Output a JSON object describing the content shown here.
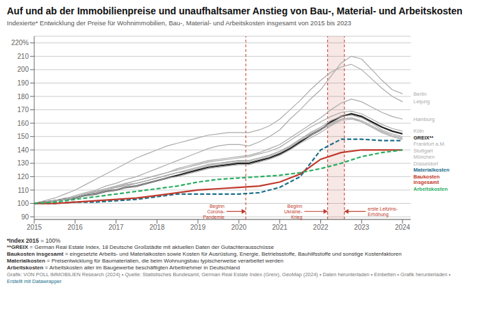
{
  "chart_data": {
    "type": "line",
    "title": "Auf und ab der Immobilienpreise und unaufhaltsamer Anstieg von Bau-, Material- und Arbeitskosten",
    "subtitle": "Indexierte* Entwicklung der Preise für Wohnimmobilien, Bau-, Material- und Arbeitskosten insgesamt von 2015 bis 2023",
    "footnotes": [
      "*Index 2015 = 100%",
      "**GREIX = German Real Estate Index, 18 Deutsche Großstädte mit aktuellen Daten der Gutachterausschüsse",
      "Baukosten insgesamt = eingesetzte Arbeits- und Materialkosten sowie Kosten für Ausrüstung, Energie, Betriebsstoffe, Bauhilfsstoffe und sonstige Kostenfaktoren",
      "Materialkosten = Preisentwicklung für Baumaterialien, die beim Wohnungsbau typischerweise verarbeitet werden",
      "Arbeitskosten = Arbeitskosten aller im Baugewerbe beschäftigten Arbeitnehmer in Deutschland",
      "Grafik: VON POLL IMMOBILIEN Research (2024) • Quelle: Statistisches Bundesamt, German Real Estate Index (Greix), GeoMap (2024) • Daten herunterladen • Einbetten • Grafik herunterladen •",
      "Erstellt mit Datawrapper"
    ],
    "xlim": [
      2015.0,
      2024.2
    ],
    "xticks": [
      2015,
      2016,
      2017,
      2018,
      2019,
      2020,
      2021,
      2022,
      2023,
      2024
    ],
    "ylim": [
      88,
      225
    ],
    "yticks": [
      90,
      100,
      110,
      120,
      130,
      140,
      150,
      160,
      170,
      180,
      190,
      200,
      210,
      {
        "value": 220,
        "label": "220%"
      }
    ],
    "grid": true,
    "vlines": [
      2020.17,
      2022.17,
      2022.58
    ],
    "vline_colors": [
      "#c0392b",
      "#c0392b",
      "#c0392b"
    ],
    "annotations": [
      {
        "text": "Beginn\nCorona-\nPandemie",
        "x": 2020.17,
        "text_x": 2019.7,
        "y": 94,
        "color": "#c0392b"
      },
      {
        "text": "Beginn\nUkraine-\nKrieg",
        "x": 2022.17,
        "text_x": 2021.6,
        "y": 94,
        "color": "#c0392b"
      },
      {
        "text": "erste Leitzins-\nErhöhung",
        "x": 2022.58,
        "text_x": 2023.1,
        "y": 94,
        "color": "#c0392b"
      }
    ],
    "series": [
      {
        "name": "Berlin",
        "color": "#aaaaaa",
        "line_style": "solid",
        "x": [
          2015.0,
          2015.25,
          2015.5,
          2015.75,
          2016.0,
          2016.25,
          2016.5,
          2016.75,
          2017.0,
          2017.25,
          2017.5,
          2017.75,
          2018.0,
          2018.25,
          2018.5,
          2018.75,
          2019.0,
          2019.25,
          2019.5,
          2019.75,
          2020.0,
          2020.25,
          2020.5,
          2020.75,
          2021.0,
          2021.25,
          2021.5,
          2021.75,
          2022.0,
          2022.25,
          2022.5,
          2022.75,
          2023.0,
          2023.25,
          2023.5,
          2023.75,
          2024.0
        ],
        "values": [
          100,
          101,
          102,
          103,
          106,
          108,
          110,
          113,
          115,
          118,
          120,
          123,
          126,
          129,
          132,
          135,
          138,
          141,
          143,
          144,
          144,
          143,
          146,
          150,
          155,
          163,
          170,
          178,
          185,
          195,
          205,
          210,
          208,
          200,
          192,
          185,
          182
        ]
      },
      {
        "name": "Hamburg",
        "color": "#aaaaaa",
        "line_style": "solid",
        "x": [
          2015.0,
          2015.25,
          2015.5,
          2015.75,
          2016.0,
          2016.25,
          2016.5,
          2016.75,
          2017.0,
          2017.25,
          2017.5,
          2017.75,
          2018.0,
          2018.25,
          2018.5,
          2018.75,
          2019.0,
          2019.25,
          2019.5,
          2019.75,
          2020.0,
          2020.25,
          2020.5,
          2020.75,
          2021.0,
          2021.25,
          2021.5,
          2021.75,
          2022.0,
          2022.25,
          2022.5,
          2022.75,
          2023.0,
          2023.25,
          2023.5,
          2023.75,
          2024.0
        ],
        "values": [
          100,
          101,
          102,
          104,
          105,
          107,
          109,
          111,
          113,
          115,
          117,
          119,
          121,
          123,
          126,
          128,
          130,
          132,
          133,
          134,
          135,
          136,
          138,
          141,
          144,
          149,
          154,
          159,
          164,
          170,
          175,
          178,
          176,
          172,
          168,
          165,
          163
        ]
      },
      {
        "name": "Leipzig",
        "color": "#aaaaaa",
        "line_style": "solid",
        "x": [
          2015.0,
          2015.25,
          2015.5,
          2015.75,
          2016.0,
          2016.25,
          2016.5,
          2016.75,
          2017.0,
          2017.25,
          2017.5,
          2017.75,
          2018.0,
          2018.25,
          2018.5,
          2018.75,
          2019.0,
          2019.25,
          2019.5,
          2019.75,
          2020.0,
          2020.25,
          2020.5,
          2020.75,
          2021.0,
          2021.25,
          2021.5,
          2021.75,
          2022.0,
          2022.25,
          2022.5,
          2022.75,
          2023.0,
          2023.25,
          2023.5,
          2023.75,
          2024.0
        ],
        "values": [
          100,
          102,
          104,
          107,
          110,
          114,
          118,
          122,
          126,
          130,
          134,
          137,
          140,
          143,
          145,
          147,
          149,
          151,
          152,
          153,
          153,
          153,
          155,
          158,
          163,
          170,
          177,
          185,
          192,
          198,
          202,
          204,
          200,
          193,
          186,
          180,
          176
        ]
      },
      {
        "name": "GREIX**",
        "color": "#222222",
        "line_style": "solid",
        "x": [
          2015.0,
          2015.25,
          2015.5,
          2015.75,
          2016.0,
          2016.25,
          2016.5,
          2016.75,
          2017.0,
          2017.25,
          2017.5,
          2017.75,
          2018.0,
          2018.25,
          2018.5,
          2018.75,
          2019.0,
          2019.25,
          2019.5,
          2019.75,
          2020.0,
          2020.25,
          2020.5,
          2020.75,
          2021.0,
          2021.25,
          2021.5,
          2021.75,
          2022.0,
          2022.25,
          2022.5,
          2022.75,
          2023.0,
          2023.25,
          2023.5,
          2023.75,
          2024.0
        ],
        "values": [
          100,
          101,
          102,
          103,
          104,
          106,
          107,
          109,
          110,
          112,
          113,
          115,
          117,
          119,
          121,
          123,
          125,
          127,
          128,
          129,
          130,
          130,
          132,
          134,
          137,
          141,
          146,
          151,
          155,
          161,
          165,
          167,
          165,
          161,
          157,
          154,
          152
        ]
      },
      {
        "name": "Köln",
        "color": "#aaaaaa",
        "line_style": "solid",
        "x": [
          2015.0,
          2015.25,
          2015.5,
          2015.75,
          2016.0,
          2016.25,
          2016.5,
          2016.75,
          2017.0,
          2017.25,
          2017.5,
          2017.75,
          2018.0,
          2018.25,
          2018.5,
          2018.75,
          2019.0,
          2019.25,
          2019.5,
          2019.75,
          2020.0,
          2020.25,
          2020.5,
          2020.75,
          2021.0,
          2021.25,
          2021.5,
          2021.75,
          2022.0,
          2022.25,
          2022.5,
          2022.75,
          2023.0,
          2023.25,
          2023.5,
          2023.75,
          2024.0
        ],
        "values": [
          100,
          101,
          102,
          103,
          105,
          107,
          109,
          111,
          113,
          115,
          117,
          119,
          121,
          123,
          125,
          127,
          129,
          131,
          132,
          133,
          134,
          135,
          137,
          139,
          142,
          147,
          152,
          157,
          161,
          165,
          168,
          169,
          167,
          163,
          159,
          156,
          154
        ]
      },
      {
        "name": "Stuttgart",
        "color": "#aaaaaa",
        "line_style": "solid",
        "x": [
          2015.0,
          2015.25,
          2015.5,
          2015.75,
          2016.0,
          2016.25,
          2016.5,
          2016.75,
          2017.0,
          2017.25,
          2017.5,
          2017.75,
          2018.0,
          2018.25,
          2018.5,
          2018.75,
          2019.0,
          2019.25,
          2019.5,
          2019.75,
          2020.0,
          2020.25,
          2020.5,
          2020.75,
          2021.0,
          2021.25,
          2021.5,
          2021.75,
          2022.0,
          2022.25,
          2022.5,
          2022.75,
          2023.0,
          2023.25,
          2023.5,
          2023.75,
          2024.0
        ],
        "values": [
          100,
          101,
          102,
          103,
          105,
          107,
          109,
          110,
          112,
          114,
          115,
          117,
          119,
          121,
          123,
          125,
          127,
          129,
          130,
          131,
          132,
          132,
          134,
          136,
          139,
          143,
          148,
          152,
          156,
          160,
          163,
          164,
          162,
          158,
          154,
          151,
          149
        ]
      },
      {
        "name": "Frankfurt a.M.",
        "color": "#aaaaaa",
        "line_style": "solid",
        "x": [
          2015.0,
          2015.25,
          2015.5,
          2015.75,
          2016.0,
          2016.25,
          2016.5,
          2016.75,
          2017.0,
          2017.25,
          2017.5,
          2017.75,
          2018.0,
          2018.25,
          2018.5,
          2018.75,
          2019.0,
          2019.25,
          2019.5,
          2019.75,
          2020.0,
          2020.25,
          2020.5,
          2020.75,
          2021.0,
          2021.25,
          2021.5,
          2021.75,
          2022.0,
          2022.25,
          2022.5,
          2022.75,
          2023.0,
          2023.25,
          2023.5,
          2023.75,
          2024.0
        ],
        "values": [
          100,
          101,
          102,
          103,
          105,
          107,
          108,
          110,
          112,
          114,
          115,
          117,
          119,
          121,
          123,
          125,
          127,
          129,
          130,
          131,
          132,
          132,
          134,
          136,
          139,
          143,
          148,
          153,
          157,
          162,
          165,
          166,
          164,
          160,
          155,
          152,
          150
        ]
      },
      {
        "name": "München",
        "color": "#aaaaaa",
        "line_style": "solid",
        "x": [
          2015.0,
          2015.25,
          2015.5,
          2015.75,
          2016.0,
          2016.25,
          2016.5,
          2016.75,
          2017.0,
          2017.25,
          2017.5,
          2017.75,
          2018.0,
          2018.25,
          2018.5,
          2018.75,
          2019.0,
          2019.25,
          2019.5,
          2019.75,
          2020.0,
          2020.25,
          2020.5,
          2020.75,
          2021.0,
          2021.25,
          2021.5,
          2021.75,
          2022.0,
          2022.25,
          2022.5,
          2022.75,
          2023.0,
          2023.25,
          2023.5,
          2023.75,
          2024.0
        ],
        "values": [
          100,
          101,
          102,
          103,
          105,
          107,
          108,
          110,
          112,
          113,
          115,
          117,
          119,
          121,
          123,
          124,
          126,
          128,
          129,
          130,
          131,
          131,
          133,
          135,
          138,
          142,
          147,
          151,
          155,
          159,
          163,
          164,
          161,
          157,
          153,
          150,
          148
        ]
      },
      {
        "name": "Düsseldorf",
        "color": "#aaaaaa",
        "line_style": "solid",
        "x": [
          2015.0,
          2015.25,
          2015.5,
          2015.75,
          2016.0,
          2016.25,
          2016.5,
          2016.75,
          2017.0,
          2017.25,
          2017.5,
          2017.75,
          2018.0,
          2018.25,
          2018.5,
          2018.75,
          2019.0,
          2019.25,
          2019.5,
          2019.75,
          2020.0,
          2020.25,
          2020.5,
          2020.75,
          2021.0,
          2021.25,
          2021.5,
          2021.75,
          2022.0,
          2022.25,
          2022.5,
          2022.75,
          2023.0,
          2023.25,
          2023.5,
          2023.75,
          2024.0
        ],
        "values": [
          100,
          101,
          102,
          103,
          104,
          106,
          107,
          109,
          110,
          112,
          113,
          115,
          117,
          119,
          120,
          122,
          124,
          126,
          127,
          128,
          129,
          129,
          131,
          133,
          136,
          140,
          145,
          149,
          153,
          158,
          162,
          163,
          161,
          157,
          153,
          150,
          148
        ]
      },
      {
        "name": "Materialkosten",
        "color": "#1a6e8a",
        "line_style": "dashed",
        "x": [
          2015.0,
          2015.5,
          2016.0,
          2016.5,
          2017.0,
          2017.5,
          2018.0,
          2018.5,
          2019.0,
          2019.5,
          2020.0,
          2020.5,
          2021.0,
          2021.5,
          2022.0,
          2022.5,
          2023.0,
          2023.5,
          2024.0
        ],
        "values": [
          100,
          100,
          101,
          101,
          102,
          103,
          105,
          107,
          107,
          107,
          107,
          108,
          112,
          120,
          140,
          148,
          148,
          147,
          147
        ]
      },
      {
        "name": "Baukosten\ninsgesamt",
        "color": "#c0392b",
        "line_style": "solid",
        "x": [
          2015.0,
          2015.5,
          2016.0,
          2016.5,
          2017.0,
          2017.5,
          2018.0,
          2018.5,
          2019.0,
          2019.5,
          2020.0,
          2020.5,
          2021.0,
          2021.5,
          2022.0,
          2022.5,
          2023.0,
          2023.5,
          2024.0
        ],
        "values": [
          100,
          100,
          101,
          102,
          103,
          104,
          106,
          108,
          110,
          111,
          112,
          113,
          116,
          122,
          133,
          138,
          140,
          140,
          140
        ]
      },
      {
        "name": "Arbeitskosten",
        "color": "#27ae60",
        "line_style": "dashed",
        "x": [
          2015.0,
          2015.5,
          2016.0,
          2016.5,
          2017.0,
          2017.5,
          2018.0,
          2018.5,
          2019.0,
          2019.5,
          2020.0,
          2020.5,
          2021.0,
          2021.5,
          2022.0,
          2022.5,
          2023.0,
          2023.5,
          2024.0
        ],
        "values": [
          100,
          101,
          103,
          105,
          107,
          109,
          111,
          113,
          116,
          118,
          119,
          120,
          121,
          123,
          126,
          130,
          135,
          138,
          140
        ]
      }
    ]
  }
}
